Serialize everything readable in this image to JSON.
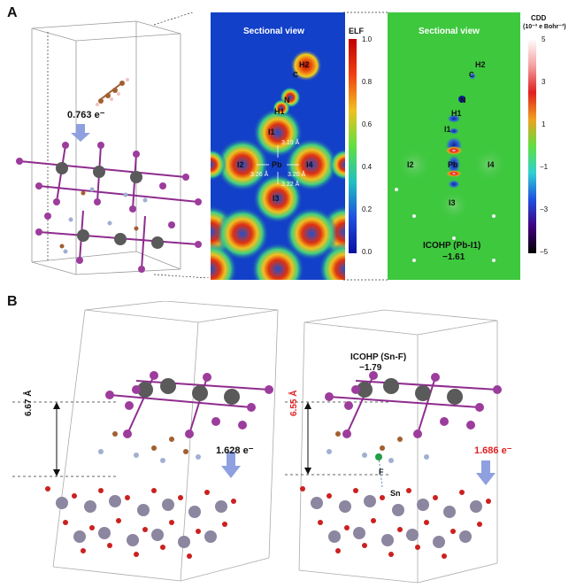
{
  "panels": {
    "a_letter": "A",
    "b_letter": "B"
  },
  "panel_a": {
    "transfer_label": "0.763 e⁻",
    "elf_map": {
      "title": "Sectional view",
      "atoms": [
        "H2",
        "C",
        "N",
        "H1",
        "I1",
        "I2",
        "Pb",
        "I4",
        "I3"
      ],
      "distances": [
        "3.19 Å",
        "3.26 Å",
        "3.20 Å",
        "3.22 Å"
      ]
    },
    "elf_colorbar": {
      "label": "ELF",
      "ticks": [
        "1.0",
        "0.8",
        "0.6",
        "0.4",
        "0.2",
        "0.0"
      ]
    },
    "cdd_map": {
      "title": "Sectional view",
      "atoms": [
        "H2",
        "C",
        "N",
        "H1",
        "I1",
        "I2",
        "Pb",
        "I4",
        "I3"
      ],
      "icohp_label": "ICOHP (Pb-I1)",
      "icohp_value": "−1.61"
    },
    "cdd_colorbar": {
      "label_line1": "CDD",
      "label_line2": "(10⁻³ e Bohr⁻³)",
      "ticks": [
        "5",
        "3",
        "1",
        "−1",
        "−3",
        "−5"
      ]
    }
  },
  "panel_b": {
    "left": {
      "distance_label": "6.67 Å",
      "transfer_label": "1.628 e⁻"
    },
    "right": {
      "distance_label": "6.55 Å",
      "transfer_label": "1.686 e⁻",
      "icohp_label": "ICOHP (Sn-F)",
      "icohp_value": "−1.79",
      "atom_f": "F",
      "atom_sn": "Sn"
    }
  },
  "colors": {
    "pb": "#5a5a5a",
    "iodine": "#8e2c8e",
    "sn": "#8c86a0",
    "oxygen": "#cc2020",
    "red_label": "#e02020",
    "arrow": "#6a7fd0"
  }
}
